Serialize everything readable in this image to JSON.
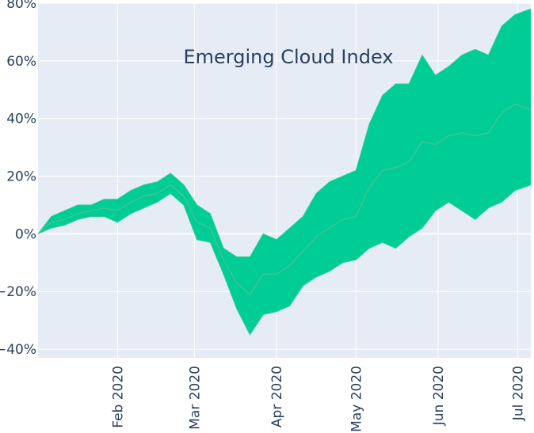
{
  "chart_data": {
    "type": "area",
    "title": "Emerging Cloud Index",
    "xlabel": "",
    "ylabel": "",
    "x_range": [
      "2020-01-02",
      "2020-07-06"
    ],
    "ylim": [
      -43,
      80
    ],
    "y_ticks": [
      {
        "value": 80,
        "label": "80%"
      },
      {
        "value": 60,
        "label": "60%"
      },
      {
        "value": 40,
        "label": "40%"
      },
      {
        "value": 20,
        "label": "20%"
      },
      {
        "value": 0,
        "label": "0%"
      },
      {
        "value": -20,
        "label": "−20%"
      },
      {
        "value": -40,
        "label": "−40%"
      }
    ],
    "x_ticks": [
      {
        "date": "2020-02-01",
        "label": "Feb 2020"
      },
      {
        "date": "2020-03-01",
        "label": "Mar 2020"
      },
      {
        "date": "2020-04-01",
        "label": "Apr 2020"
      },
      {
        "date": "2020-05-01",
        "label": "May 2020"
      },
      {
        "date": "2020-06-01",
        "label": "Jun 2020"
      },
      {
        "date": "2020-07-01",
        "label": "Jul 2020"
      }
    ],
    "grid": true,
    "fill_color": "#00cc96",
    "band_line_color": "#2ecf93",
    "median_line_color": "#56bf92",
    "plot_background": "#e5ecf6",
    "series": [
      {
        "x": [
          "2020-01-02",
          "2020-01-07",
          "2020-01-12",
          "2020-01-17",
          "2020-01-22",
          "2020-01-27",
          "2020-02-01",
          "2020-02-06",
          "2020-02-11",
          "2020-02-16",
          "2020-02-21",
          "2020-02-26",
          "2020-03-02",
          "2020-03-07",
          "2020-03-12",
          "2020-03-17",
          "2020-03-22",
          "2020-03-27",
          "2020-04-01",
          "2020-04-06",
          "2020-04-11",
          "2020-04-16",
          "2020-04-21",
          "2020-04-26",
          "2020-05-01",
          "2020-05-06",
          "2020-05-11",
          "2020-05-16",
          "2020-05-21",
          "2020-05-26",
          "2020-05-31",
          "2020-06-05",
          "2020-06-10",
          "2020-06-15",
          "2020-06-20",
          "2020-06-25",
          "2020-06-30",
          "2020-07-03",
          "2020-07-06"
        ],
        "lower": [
          0,
          2,
          3,
          5,
          6,
          6,
          4,
          7,
          9,
          11,
          14,
          10,
          -2,
          -3,
          -14,
          -26,
          -35,
          -28,
          -27,
          -25,
          -18,
          -15,
          -13,
          -10,
          -9,
          -5,
          -3,
          -5,
          -1,
          2,
          8,
          11,
          8,
          5,
          9,
          11,
          15,
          16,
          17
        ],
        "upper": [
          0,
          6,
          8,
          10,
          10,
          12,
          12,
          15,
          17,
          18,
          21,
          17,
          10,
          7,
          -5,
          -8,
          -8,
          0,
          -2,
          2,
          6,
          14,
          18,
          20,
          22,
          38,
          48,
          52,
          52,
          62,
          55,
          58,
          62,
          64,
          62,
          72,
          76,
          77,
          78
        ],
        "median": [
          0,
          4,
          5,
          7,
          8,
          9,
          8,
          11,
          13,
          14,
          17,
          13,
          4,
          2,
          -9,
          -17,
          -21,
          -14,
          -14,
          -11,
          -6,
          -1,
          2,
          5,
          6,
          16,
          22,
          23,
          25,
          32,
          31,
          34,
          35,
          34,
          35,
          42,
          45,
          44,
          43
        ]
      }
    ]
  }
}
